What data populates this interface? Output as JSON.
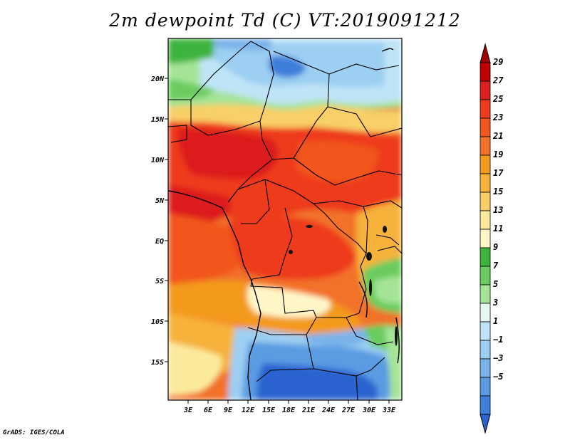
{
  "title": "2m dewpoint Td (C) VT:2019091212",
  "credit": "GrADS: IGES/COLA",
  "map": {
    "region": "Central Africa",
    "variable": "2m dewpoint",
    "units": "C",
    "lat_labels": [
      "20N",
      "15N",
      "10N",
      "5N",
      "EQ",
      "5S",
      "10S",
      "15S"
    ],
    "lon_labels": [
      "3E",
      "6E",
      "9E",
      "12E",
      "15E",
      "18E",
      "21E",
      "24E",
      "27E",
      "30E",
      "33E"
    ]
  },
  "colorbar": {
    "labels": [
      "29",
      "27",
      "25",
      "23",
      "21",
      "19",
      "17",
      "15",
      "13",
      "11",
      "9",
      "7",
      "5",
      "3",
      "1",
      "−1",
      "−3",
      "−5"
    ],
    "colors": [
      "#9e0000",
      "#c00000",
      "#dc1f1f",
      "#ee3a1d",
      "#f2561f",
      "#f2722a",
      "#f39a1f",
      "#f6b23b",
      "#f8cf67",
      "#fbea9c",
      "#fff6c8",
      "#3cb43c",
      "#6acc5e",
      "#a5e496",
      "#e6f8f2",
      "#bfe4f7",
      "#9ccff2",
      "#7ab3ea",
      "#5a9be2",
      "#3d7fdb",
      "#2a63cf"
    ]
  }
}
